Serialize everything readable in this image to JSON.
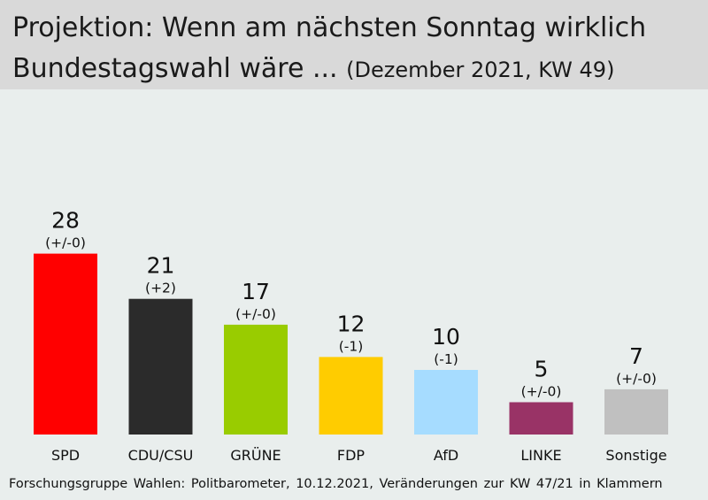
{
  "header": {
    "title_line1": "Projektion: Wenn am nächsten Sonntag wirklich",
    "title_line2": "Bundestagswahl wäre ...",
    "subtitle": "(Dezember 2021, KW 49)"
  },
  "footer": {
    "source": "Forschungsgruppe Wahlen: Politbarometer, 10.12.2021, Veränderungen zur KW 47/21 in Klammern"
  },
  "chart_data": {
    "type": "bar",
    "title": "Projektion: Wenn am nächsten Sonntag wirklich Bundestagswahl wäre ... (Dezember 2021, KW 49)",
    "xlabel": "",
    "ylabel": "",
    "ylim": [
      0,
      28
    ],
    "grid": false,
    "categories": [
      "SPD",
      "CDU/CSU",
      "GRÜNE",
      "FDP",
      "AfD",
      "LINKE",
      "Sonstige"
    ],
    "values": [
      28,
      21,
      17,
      12,
      10,
      5,
      7
    ],
    "changes": [
      "(+/-0)",
      "(+2)",
      "(+/-0)",
      "(-1)",
      "(-1)",
      "(+/-0)",
      "(+/-0)"
    ],
    "colors": [
      "#ff0000",
      "#2b2b2b",
      "#99cc00",
      "#ffcc00",
      "#a6dcff",
      "#993366",
      "#c0c0c0"
    ]
  }
}
